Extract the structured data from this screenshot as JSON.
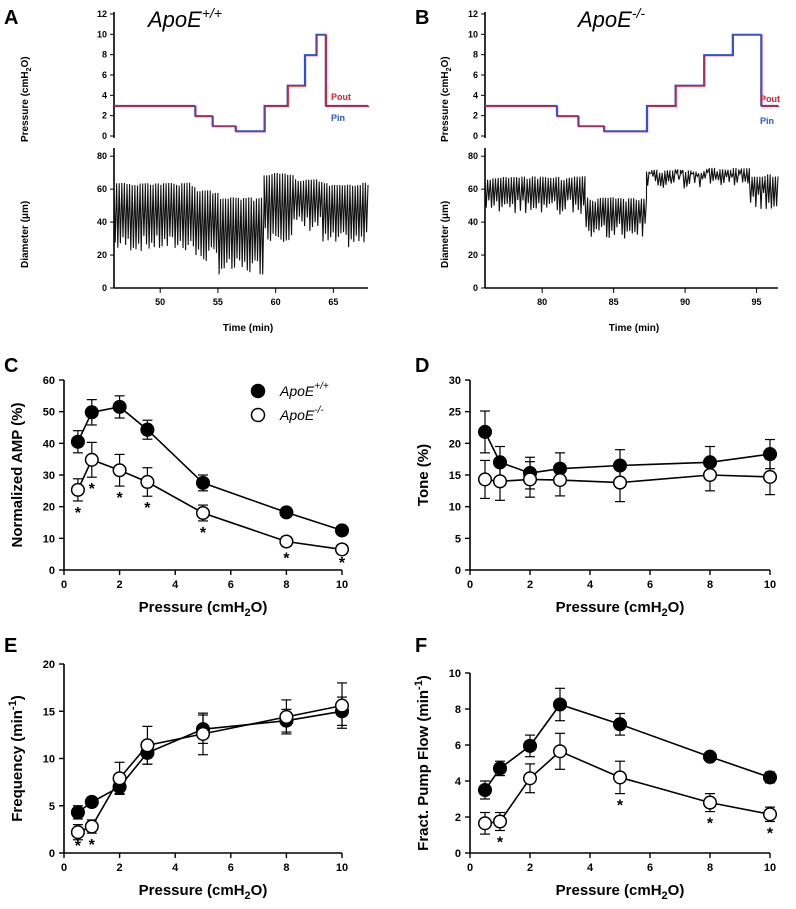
{
  "traces": [
    {
      "label": "A",
      "title": "ApoE",
      "title_sup": "+/+",
      "pressure_ylabel": "Pressure (cmH",
      "pressure_ylabel_sub": "2",
      "pressure_ylabel_end": "O)",
      "diameter_ylabel": "Diameter (μm)",
      "xlabel": "Time  (min)",
      "pressure_ticks": [
        "0",
        "2",
        "4",
        "6",
        "8",
        "10",
        "12"
      ],
      "diameter_ticks": [
        "0",
        "20",
        "40",
        "60",
        "80"
      ],
      "time_ticks": [
        "50",
        "55",
        "60",
        "65"
      ],
      "time_range": [
        46,
        68
      ],
      "pout_label": "Pout",
      "pin_label": "Pin",
      "pressure_steps": [
        [
          46,
          3
        ],
        [
          53,
          2
        ],
        [
          54.5,
          1
        ],
        [
          56.5,
          0.5
        ],
        [
          59,
          3
        ],
        [
          61,
          5
        ],
        [
          62.5,
          8
        ],
        [
          63.5,
          10
        ],
        [
          64.3,
          3
        ],
        [
          68,
          3
        ]
      ],
      "diameter_segments": [
        [
          46,
          53,
          64,
          22
        ],
        [
          53,
          55,
          60,
          15
        ],
        [
          55,
          59,
          55,
          8
        ],
        [
          59,
          61.5,
          70,
          28
        ],
        [
          61.5,
          64,
          66,
          34
        ],
        [
          64,
          68,
          64,
          24
        ]
      ],
      "colors": {
        "pout": "#e8192c",
        "pin": "#2255d6"
      }
    },
    {
      "label": "B",
      "title": "ApoE",
      "title_sup": "-/-",
      "pressure_ylabel": "Pressure (cmH",
      "pressure_ylabel_sub": "2",
      "pressure_ylabel_end": "O)",
      "diameter_ylabel": "Diameter (μm)",
      "xlabel": "Time  (min)",
      "pressure_ticks": [
        "0",
        "2",
        "4",
        "6",
        "8",
        "10",
        "12"
      ],
      "diameter_ticks": [
        "0",
        "20",
        "40",
        "60",
        "80"
      ],
      "time_ticks": [
        "80",
        "85",
        "90",
        "95"
      ],
      "time_range": [
        76,
        96.5
      ],
      "pout_label": "Pout",
      "pin_label": "Pin",
      "pressure_steps": [
        [
          76,
          3
        ],
        [
          81,
          2
        ],
        [
          82.5,
          1
        ],
        [
          84.3,
          0.5
        ],
        [
          87.3,
          3
        ],
        [
          89.3,
          5
        ],
        [
          91.3,
          8
        ],
        [
          93.3,
          10
        ],
        [
          95.3,
          3
        ],
        [
          96.5,
          3
        ]
      ],
      "diameter_segments": [
        [
          76,
          83,
          68,
          44
        ],
        [
          83,
          87.3,
          55,
          30
        ],
        [
          87.3,
          91.5,
          72,
          60
        ],
        [
          91.5,
          94.5,
          73,
          62
        ],
        [
          94.5,
          96.5,
          69,
          48
        ]
      ],
      "colors": {
        "pout": "#e8192c",
        "pin": "#2255d6"
      }
    }
  ],
  "legend": {
    "wt": "ApoE",
    "wt_sup": "+/+",
    "ko": "ApoE",
    "ko_sup": "-/-"
  },
  "chart_data": [
    {
      "panel": "C",
      "type": "line",
      "xlabel": "Pressure (cmH",
      "xlabel_sub": "2",
      "xlabel_end": "O)",
      "ylabel": "Normalized AMP (%)",
      "ylabel_sup": "",
      "xlim": [
        0,
        10
      ],
      "ylim": [
        0,
        60
      ],
      "xticks": [
        "0",
        "2",
        "4",
        "6",
        "8",
        "10"
      ],
      "yticks": [
        "0",
        "10",
        "20",
        "30",
        "40",
        "50",
        "60"
      ],
      "x": [
        0.5,
        1,
        2,
        3,
        5,
        8,
        10
      ],
      "series": [
        {
          "name": "ApoE+/+",
          "values": [
            40.5,
            49.8,
            51.5,
            44.3,
            27.5,
            18.2,
            12.5
          ],
          "err": [
            3.5,
            4.0,
            3.5,
            3.0,
            2.5,
            1.2,
            1.2
          ]
        },
        {
          "name": "ApoE-/-",
          "values": [
            25.3,
            34.8,
            31.5,
            27.8,
            18.0,
            9.0,
            6.5
          ],
          "err": [
            3.5,
            5.5,
            5.0,
            4.5,
            2.5,
            1.5,
            1.5
          ]
        }
      ],
      "significant_x": [
        0.5,
        1,
        2,
        3,
        5,
        8,
        10
      ]
    },
    {
      "panel": "D",
      "type": "line",
      "xlabel": "Pressure (cmH",
      "xlabel_sub": "2",
      "xlabel_end": "O)",
      "ylabel": "Tone (%)",
      "ylabel_sup": "",
      "xlim": [
        0,
        10
      ],
      "ylim": [
        0,
        30
      ],
      "xticks": [
        "0",
        "2",
        "4",
        "6",
        "8",
        "10"
      ],
      "yticks": [
        "0",
        "5",
        "10",
        "15",
        "20",
        "25",
        "30"
      ],
      "x": [
        0.5,
        1,
        2,
        3,
        5,
        8,
        10
      ],
      "series": [
        {
          "name": "ApoE+/+",
          "values": [
            21.8,
            17.0,
            15.3,
            16.0,
            16.5,
            17.0,
            18.3
          ],
          "err": [
            3.3,
            2.5,
            2.5,
            2.5,
            2.5,
            2.5,
            2.3
          ]
        },
        {
          "name": "ApoE-/-",
          "values": [
            14.3,
            14.0,
            14.3,
            14.2,
            13.8,
            15.0,
            14.7
          ],
          "err": [
            3.0,
            3.0,
            2.8,
            2.5,
            3.0,
            2.5,
            2.8
          ]
        }
      ],
      "significant_x": []
    },
    {
      "panel": "E",
      "type": "line",
      "xlabel": "Pressure (cmH",
      "xlabel_sub": "2",
      "xlabel_end": "O)",
      "ylabel": "Frequency (min",
      "ylabel_sup": "-1",
      "ylabel_end": ")",
      "xlim": [
        0,
        10
      ],
      "ylim": [
        0,
        20
      ],
      "xticks": [
        "0",
        "2",
        "4",
        "6",
        "8",
        "10"
      ],
      "yticks": [
        "0",
        "5",
        "10",
        "15",
        "20"
      ],
      "x": [
        0.5,
        1,
        2,
        3,
        5,
        8,
        10
      ],
      "series": [
        {
          "name": "ApoE+/+",
          "values": [
            4.3,
            5.4,
            7.0,
            10.6,
            13.1,
            14.0,
            15.0
          ],
          "err": [
            0.7,
            0.5,
            0.7,
            1.2,
            1.5,
            1.2,
            1.5
          ]
        },
        {
          "name": "ApoE-/-",
          "values": [
            2.2,
            2.8,
            7.9,
            11.4,
            12.6,
            14.4,
            15.6
          ],
          "err": [
            0.8,
            0.7,
            1.7,
            2.0,
            2.2,
            1.8,
            2.4
          ]
        }
      ],
      "significant_x": [
        0.5,
        1
      ]
    },
    {
      "panel": "F",
      "type": "line",
      "xlabel": "Pressure (cmH",
      "xlabel_sub": "2",
      "xlabel_end": "O)",
      "ylabel": "Fract. Pump Flow (min",
      "ylabel_sup": "-1",
      "ylabel_end": ")",
      "xlim": [
        0,
        10
      ],
      "ylim": [
        0,
        10
      ],
      "xticks": [
        "0",
        "2",
        "4",
        "6",
        "8",
        "10"
      ],
      "yticks": [
        "0",
        "2",
        "4",
        "6",
        "8",
        "10"
      ],
      "x": [
        0.5,
        1,
        2,
        3,
        5,
        8,
        10
      ],
      "series": [
        {
          "name": "ApoE+/+",
          "values": [
            3.5,
            4.7,
            5.95,
            8.25,
            7.15,
            5.35,
            4.2
          ],
          "err": [
            0.5,
            0.4,
            0.6,
            0.9,
            0.6,
            0.2,
            0.3
          ]
        },
        {
          "name": "ApoE-/-",
          "values": [
            1.65,
            1.75,
            4.15,
            5.65,
            4.2,
            2.8,
            2.15
          ],
          "err": [
            0.6,
            0.5,
            0.8,
            1.0,
            0.9,
            0.5,
            0.4
          ]
        }
      ],
      "significant_x": [
        1,
        5,
        8,
        10
      ]
    }
  ]
}
